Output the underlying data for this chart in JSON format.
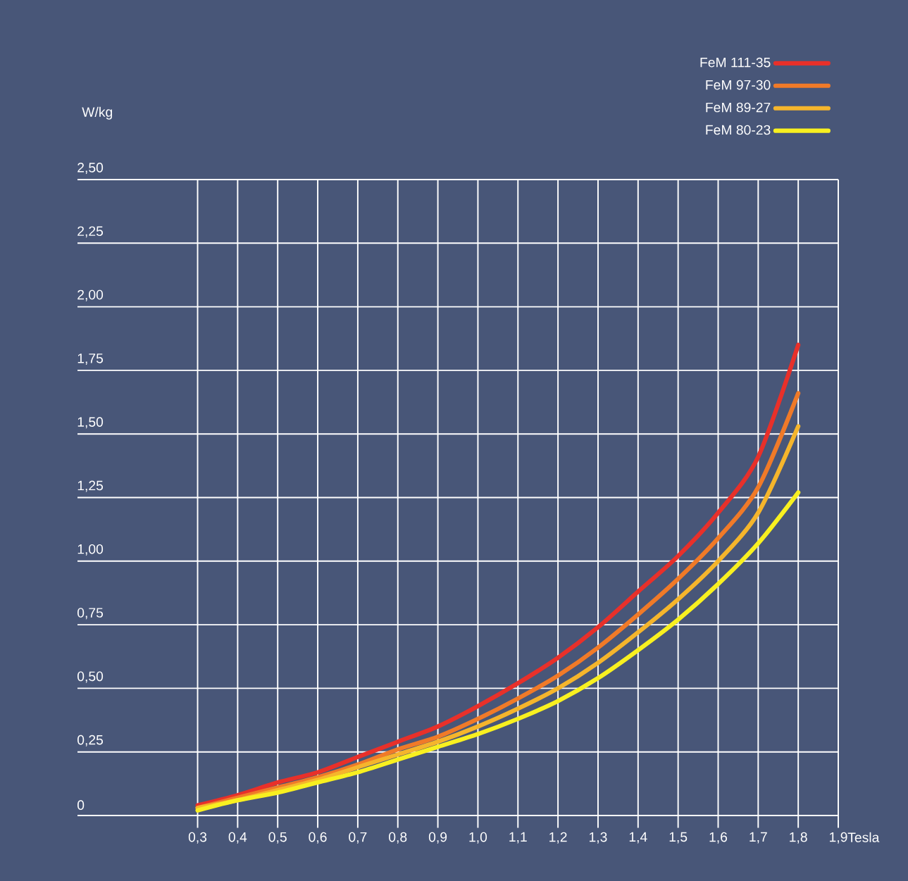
{
  "chart_data": {
    "type": "line",
    "xlabel": "Tesla",
    "ylabel": "W/kg",
    "x": [
      0.3,
      0.4,
      0.5,
      0.6,
      0.7,
      0.8,
      0.9,
      1.0,
      1.1,
      1.2,
      1.3,
      1.4,
      1.5,
      1.6,
      1.7,
      1.8
    ],
    "series": [
      {
        "name": "FeM 111-35",
        "color": "#e8302a",
        "values": [
          0.04,
          0.08,
          0.13,
          0.17,
          0.23,
          0.29,
          0.35,
          0.43,
          0.52,
          0.62,
          0.74,
          0.88,
          1.02,
          1.19,
          1.41,
          1.85
        ]
      },
      {
        "name": "FeM 97-30",
        "color": "#f07a28",
        "values": [
          0.03,
          0.07,
          0.11,
          0.15,
          0.2,
          0.26,
          0.31,
          0.38,
          0.46,
          0.55,
          0.66,
          0.79,
          0.93,
          1.09,
          1.29,
          1.66
        ]
      },
      {
        "name": "FeM 89-27",
        "color": "#f5b52c",
        "values": [
          0.03,
          0.06,
          0.1,
          0.14,
          0.19,
          0.24,
          0.29,
          0.35,
          0.42,
          0.5,
          0.6,
          0.72,
          0.85,
          1.0,
          1.19,
          1.53
        ]
      },
      {
        "name": "FeM 80-23",
        "color": "#f8f020",
        "values": [
          0.02,
          0.06,
          0.09,
          0.13,
          0.17,
          0.22,
          0.27,
          0.32,
          0.38,
          0.45,
          0.54,
          0.65,
          0.77,
          0.91,
          1.07,
          1.27
        ]
      }
    ],
    "xlim": [
      0,
      1.9
    ],
    "ylim": [
      0,
      2.5
    ],
    "xticks": [
      {
        "value": 0.3,
        "label": "0,3"
      },
      {
        "value": 0.4,
        "label": "0,4"
      },
      {
        "value": 0.5,
        "label": "0,5"
      },
      {
        "value": 0.6,
        "label": "0,6"
      },
      {
        "value": 0.7,
        "label": "0,7"
      },
      {
        "value": 0.8,
        "label": "0,8"
      },
      {
        "value": 0.9,
        "label": "0,9"
      },
      {
        "value": 1.0,
        "label": "1,0"
      },
      {
        "value": 1.1,
        "label": "1,1"
      },
      {
        "value": 1.2,
        "label": "1,2"
      },
      {
        "value": 1.3,
        "label": "1,3"
      },
      {
        "value": 1.4,
        "label": "1,4"
      },
      {
        "value": 1.5,
        "label": "1,5"
      },
      {
        "value": 1.6,
        "label": "1,6"
      },
      {
        "value": 1.7,
        "label": "1,7"
      },
      {
        "value": 1.8,
        "label": "1,8"
      },
      {
        "value": 1.9,
        "label": "1,9"
      }
    ],
    "yticks": [
      0,
      {
        "value": 0.25,
        "label": "0,25"
      },
      {
        "value": 0.5,
        "label": "0,50"
      },
      {
        "value": 0.75,
        "label": "0,75"
      },
      {
        "value": 1.0,
        "label": "1,00"
      },
      {
        "value": 1.25,
        "label": "1,25"
      },
      {
        "value": 1.5,
        "label": "1,50"
      },
      {
        "value": 1.75,
        "label": "1,75"
      },
      {
        "value": 2.0,
        "label": "2,00"
      },
      {
        "value": 2.25,
        "label": "2,25"
      },
      {
        "value": 2.5,
        "label": "2,50"
      }
    ],
    "grid": true,
    "legend": "top right",
    "line_style": "solid",
    "marker": "none"
  }
}
